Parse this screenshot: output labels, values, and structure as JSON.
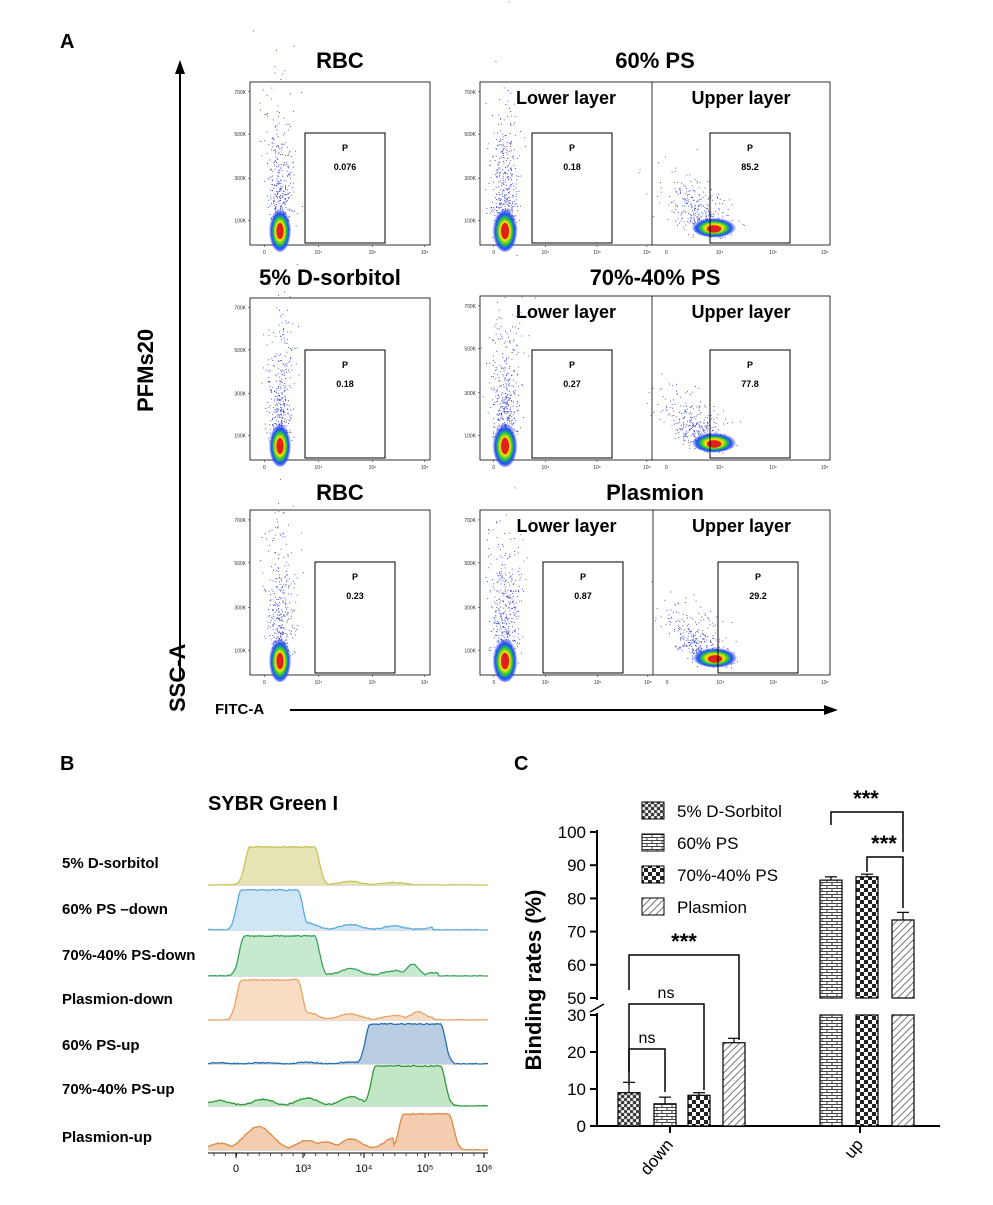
{
  "panels": {
    "a": "A",
    "b": "B",
    "c": "C"
  },
  "panel_a": {
    "y_axis_label": "SSC-A",
    "x_axis_label": "FITC-A",
    "row_label": "PFMs20",
    "y_ticks": [
      "100K",
      "300K",
      "500K",
      "700K"
    ],
    "x_ticks": [
      "0",
      "10⁴",
      "10⁶",
      "10⁸"
    ],
    "gate_name": "P",
    "lower_layer": "Lower layer",
    "upper_layer": "Upper layer",
    "rows": [
      {
        "left_title": "RBC",
        "left_value": "0.076",
        "right_title": "60%  PS",
        "lower_value": "0.18",
        "upper_value": "85.2"
      },
      {
        "left_title": "5% D-sorbitol",
        "left_value": "0.18",
        "right_title": "70%-40%  PS",
        "lower_value": "0.27",
        "upper_value": "77.8"
      },
      {
        "left_title": "RBC",
        "left_value": "0.23",
        "right_title": "Plasmion",
        "lower_value": "0.87",
        "upper_value": "29.2"
      }
    ]
  },
  "panel_b": {
    "title": "SYBR Green I",
    "x_ticks": [
      "0",
      "10³",
      "10⁴",
      "10⁵",
      "10⁶"
    ],
    "tracks": [
      {
        "label": "5% D-sorbitol",
        "color": "#c9c35a",
        "fill": "#e6e4b5"
      },
      {
        "label": "60%  PS –down",
        "color": "#5aa9dc",
        "fill": "#cfe6f6"
      },
      {
        "label": "70%-40%  PS-down",
        "color": "#3aa35a",
        "fill": "#c7e9cf"
      },
      {
        "label": "Plasmion-down",
        "color": "#e8a46a",
        "fill": "#f8dcc3"
      },
      {
        "label": "60%  PS-up",
        "color": "#2a6db0",
        "fill": "#b9cde3"
      },
      {
        "label": "70%-40%  PS-up",
        "color": "#2f9a3a",
        "fill": "#c2e6c6"
      },
      {
        "label": "Plasmion-up",
        "color": "#d98a45",
        "fill": "#f4cdb0"
      }
    ]
  },
  "chart_data": [
    {
      "type": "bar",
      "title": "",
      "xlabel": "",
      "ylabel": "Binding rates (%)",
      "categories": [
        "down",
        "up"
      ],
      "axis_break": [
        30,
        50
      ],
      "ylim": [
        0,
        100
      ],
      "y_ticks": [
        "0",
        "10",
        "20",
        "30",
        "50",
        "60",
        "70",
        "80",
        "90",
        "100"
      ],
      "series": [
        {
          "name": "5% D-Sorbitol",
          "values": [
            9.0,
            null
          ],
          "errors": [
            2.8,
            null
          ],
          "pattern": "grid"
        },
        {
          "name": "60% PS",
          "values": [
            6.0,
            85.5
          ],
          "errors": [
            1.8,
            1.0
          ],
          "pattern": "brick"
        },
        {
          "name": "70%-40% PS",
          "values": [
            8.3,
            86.5
          ],
          "errors": [
            0.7,
            0.8
          ],
          "pattern": "checker"
        },
        {
          "name": "Plasmion",
          "values": [
            22.5,
            73.5
          ],
          "errors": [
            1.2,
            2.3
          ],
          "pattern": "diagonal"
        }
      ],
      "annotations": [
        "***",
        "***",
        "***",
        "ns",
        "ns"
      ]
    }
  ]
}
